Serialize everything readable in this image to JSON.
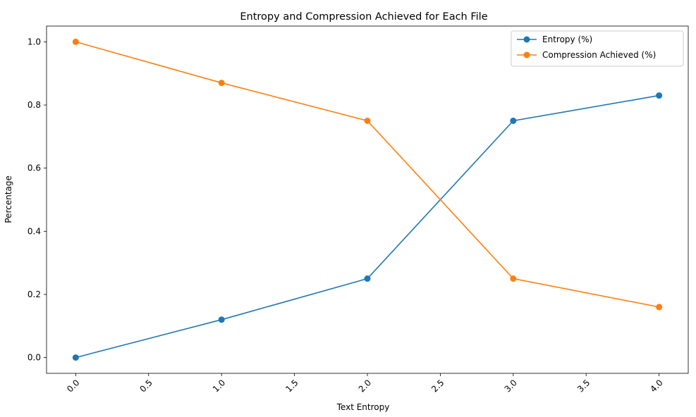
{
  "chart_data": {
    "type": "line",
    "title": "Entropy and Compression Achieved for Each File",
    "xlabel": "Text Entropy",
    "ylabel": "Percentage",
    "x": [
      0,
      1,
      2,
      3,
      4
    ],
    "xlim": [
      -0.2,
      4.2
    ],
    "ylim": [
      -0.05,
      1.05
    ],
    "xticks": [
      "0.0",
      "0.5",
      "1.0",
      "1.5",
      "2.0",
      "2.5",
      "3.0",
      "3.5",
      "4.0"
    ],
    "xtick_values": [
      0,
      0.5,
      1,
      1.5,
      2,
      2.5,
      3,
      3.5,
      4
    ],
    "yticks": [
      "0.0",
      "0.2",
      "0.4",
      "0.6",
      "0.8",
      "1.0"
    ],
    "ytick_values": [
      0,
      0.2,
      0.4,
      0.6,
      0.8,
      1.0
    ],
    "grid": false,
    "legend_position": "top-right",
    "series": [
      {
        "name": "Entropy (%)",
        "color": "#1f77b4",
        "values": [
          0.0,
          0.12,
          0.25,
          0.75,
          0.83
        ]
      },
      {
        "name": "Compression Achieved (%)",
        "color": "#ff7f0e",
        "values": [
          1.0,
          0.87,
          0.75,
          0.25,
          0.16
        ]
      }
    ]
  }
}
